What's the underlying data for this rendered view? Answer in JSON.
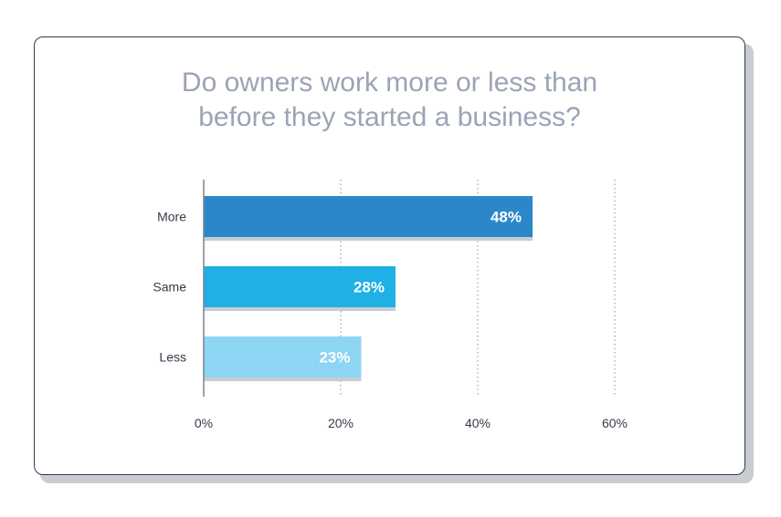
{
  "chart_data": {
    "type": "bar",
    "orientation": "horizontal",
    "title_lines": [
      "Do owners work more or less than",
      "before they started a business?"
    ],
    "categories": [
      "More",
      "Same",
      "Less"
    ],
    "values": [
      48,
      28,
      23
    ],
    "value_labels": [
      "48%",
      "28%",
      "23%"
    ],
    "colors": [
      "#2a88c9",
      "#1fb0e6",
      "#8dd6f3"
    ],
    "shadow_color": "#c8ccd2",
    "xlim": [
      0,
      60
    ],
    "xticks": [
      0,
      20,
      40,
      60
    ],
    "xtick_labels": [
      "0%",
      "20%",
      "40%",
      "60%"
    ],
    "grid": true,
    "grid_style": "dotted"
  }
}
